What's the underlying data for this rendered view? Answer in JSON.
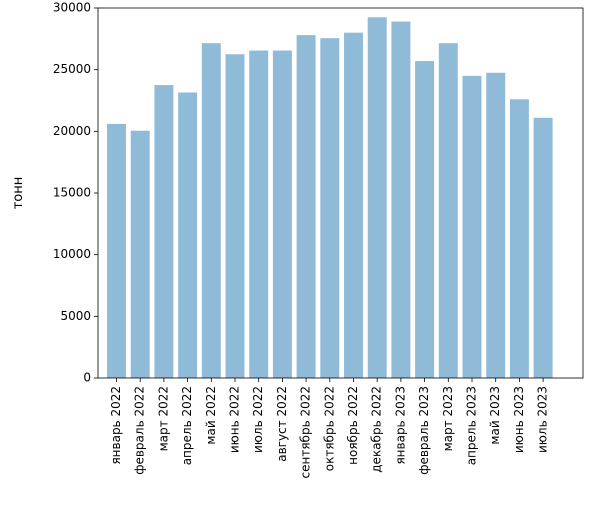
{
  "chart_data": {
    "type": "bar",
    "title": "",
    "xlabel": "",
    "ylabel": "тонн",
    "ylim": [
      0,
      30000
    ],
    "yticks": [
      0,
      5000,
      10000,
      15000,
      20000,
      25000,
      30000
    ],
    "grid": false,
    "bar_color": "#1f77b4",
    "bar_opacity": 0.5,
    "categories": [
      "январь 2022",
      "февраль 2022",
      "март 2022",
      "апрель 2022",
      "май 2022",
      "июнь 2022",
      "июль 2022",
      "август 2022",
      "сентябрь 2022",
      "октябрь 2022",
      "ноябрь 2022",
      "декабрь 2022",
      "январь 2023",
      "февраль 2023",
      "март 2023",
      "апрель 2023",
      "май 2023",
      "июнь 2023",
      "июль 2023"
    ],
    "values": [
      20600,
      20050,
      23750,
      23150,
      27150,
      26250,
      26550,
      26550,
      27800,
      27550,
      28000,
      29250,
      28900,
      25700,
      27150,
      24500,
      24750,
      22600,
      21100
    ]
  }
}
